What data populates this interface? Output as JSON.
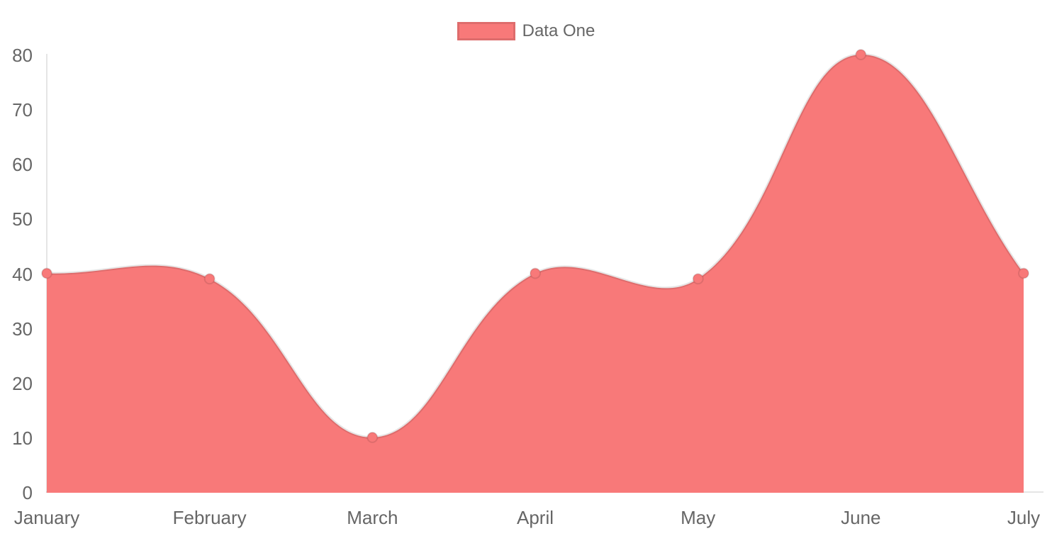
{
  "legend": {
    "label": "Data One"
  },
  "colors": {
    "fill": "#f87979",
    "stroke": "rgba(0,0,0,0.1)",
    "tick_text": "#666666",
    "background": "#ffffff"
  },
  "chart_data": {
    "type": "area",
    "title": "",
    "xlabel": "",
    "ylabel": "",
    "categories": [
      "January",
      "February",
      "March",
      "April",
      "May",
      "June",
      "July"
    ],
    "series": [
      {
        "name": "Data One",
        "values": [
          40,
          39,
          10,
          40,
          39,
          80,
          40
        ]
      }
    ],
    "ylim": [
      0,
      80
    ],
    "y_ticks": [
      0,
      10,
      20,
      30,
      40,
      50,
      60,
      70,
      80
    ],
    "grid": false,
    "legend_position": "top-center",
    "line_tension": 0.4,
    "smooth": true,
    "point_markers": true
  }
}
